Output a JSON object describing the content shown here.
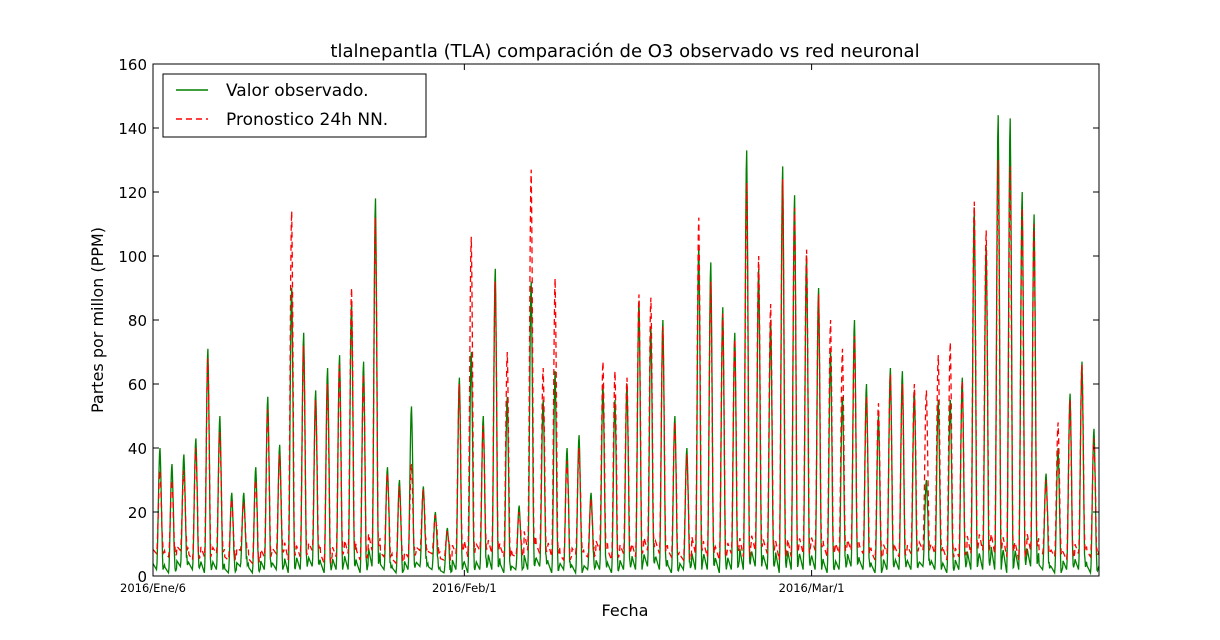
{
  "chart_data": {
    "type": "line",
    "title": "tlalnepantla (TLA) comparación de O3 observado vs red neuronal",
    "xlabel": "Fecha",
    "ylabel": "Partes por millon (PPM)",
    "ylim": [
      0,
      160
    ],
    "yticks": [
      0,
      20,
      40,
      60,
      80,
      100,
      120,
      140,
      160
    ],
    "xlim_days": [
      0,
      79
    ],
    "xticks": [
      {
        "day": 0,
        "label": "2016/Ene/6"
      },
      {
        "day": 26,
        "label": "2016/Feb/1"
      },
      {
        "day": 55,
        "label": "2016/Mar/1"
      }
    ],
    "legend_position": "top-left",
    "grid": false,
    "series": [
      {
        "name": "Valor observado.",
        "color": "#008000",
        "style": "solid",
        "daily_peaks": [
          40,
          35,
          38,
          43,
          71,
          50,
          26,
          26,
          34,
          56,
          41,
          90,
          76,
          58,
          65,
          69,
          86,
          67,
          118,
          34,
          30,
          53,
          28,
          20,
          15,
          62,
          70,
          50,
          96,
          56,
          22,
          92,
          55,
          64,
          40,
          44,
          26,
          60,
          55,
          60,
          86,
          78,
          80,
          50,
          40,
          103,
          98,
          84,
          76,
          133,
          96,
          80,
          128,
          119,
          100,
          90,
          70,
          56,
          80,
          60,
          50,
          65,
          64,
          58,
          30,
          55,
          55,
          62,
          115,
          103,
          144,
          143,
          120,
          113,
          32,
          40,
          57,
          67,
          46,
          10
        ],
        "daily_mins": [
          2,
          1,
          3,
          2,
          1,
          2,
          1,
          3,
          1,
          2,
          2,
          1,
          2,
          3,
          1,
          2,
          2,
          1,
          3,
          2,
          1,
          2,
          3,
          2,
          1,
          2,
          1,
          2,
          2,
          1,
          2,
          2,
          3,
          1,
          2,
          1,
          2,
          2,
          1,
          2,
          2,
          3,
          2,
          1,
          2,
          2,
          2,
          1,
          2,
          2,
          3,
          2,
          1,
          2,
          2,
          2,
          1,
          2,
          3,
          2,
          1,
          2,
          2,
          2,
          3,
          2,
          1,
          2,
          2,
          2,
          2,
          1,
          2,
          3,
          2,
          1,
          2,
          2,
          1,
          2
        ]
      },
      {
        "name": "Pronostico 24h NN.",
        "color": "#ff0000",
        "style": "dashed",
        "daily_peaks": [
          33,
          30,
          33,
          40,
          68,
          45,
          24,
          23,
          30,
          52,
          38,
          114,
          72,
          55,
          60,
          66,
          90,
          63,
          112,
          32,
          28,
          35,
          27,
          19,
          14,
          60,
          106,
          47,
          92,
          70,
          20,
          127,
          65,
          93,
          36,
          40,
          24,
          67,
          64,
          62,
          88,
          87,
          78,
          48,
          38,
          112,
          92,
          82,
          74,
          123,
          100,
          85,
          124,
          115,
          102,
          88,
          80,
          71,
          75,
          56,
          54,
          63,
          60,
          60,
          58,
          69,
          73,
          61,
          117,
          108,
          130,
          128,
          115,
          110,
          30,
          48,
          55,
          66,
          43,
          8
        ],
        "daily_mins": [
          7,
          6,
          8,
          5,
          6,
          7,
          5,
          8,
          4,
          6,
          7,
          5,
          6,
          8,
          4,
          6,
          7,
          5,
          8,
          6,
          4,
          6,
          8,
          7,
          5,
          7,
          6,
          8,
          7,
          6,
          6,
          8,
          7,
          6,
          5,
          7,
          6,
          8,
          5,
          7,
          6,
          8,
          7,
          6,
          5,
          7,
          6,
          5,
          7,
          6,
          8,
          7,
          5,
          6,
          7,
          8,
          6,
          7,
          8,
          7,
          5,
          7,
          6,
          7,
          8,
          7,
          5,
          6,
          7,
          8,
          7,
          6,
          5,
          8,
          7,
          6,
          5,
          7,
          6,
          7
        ]
      }
    ]
  }
}
